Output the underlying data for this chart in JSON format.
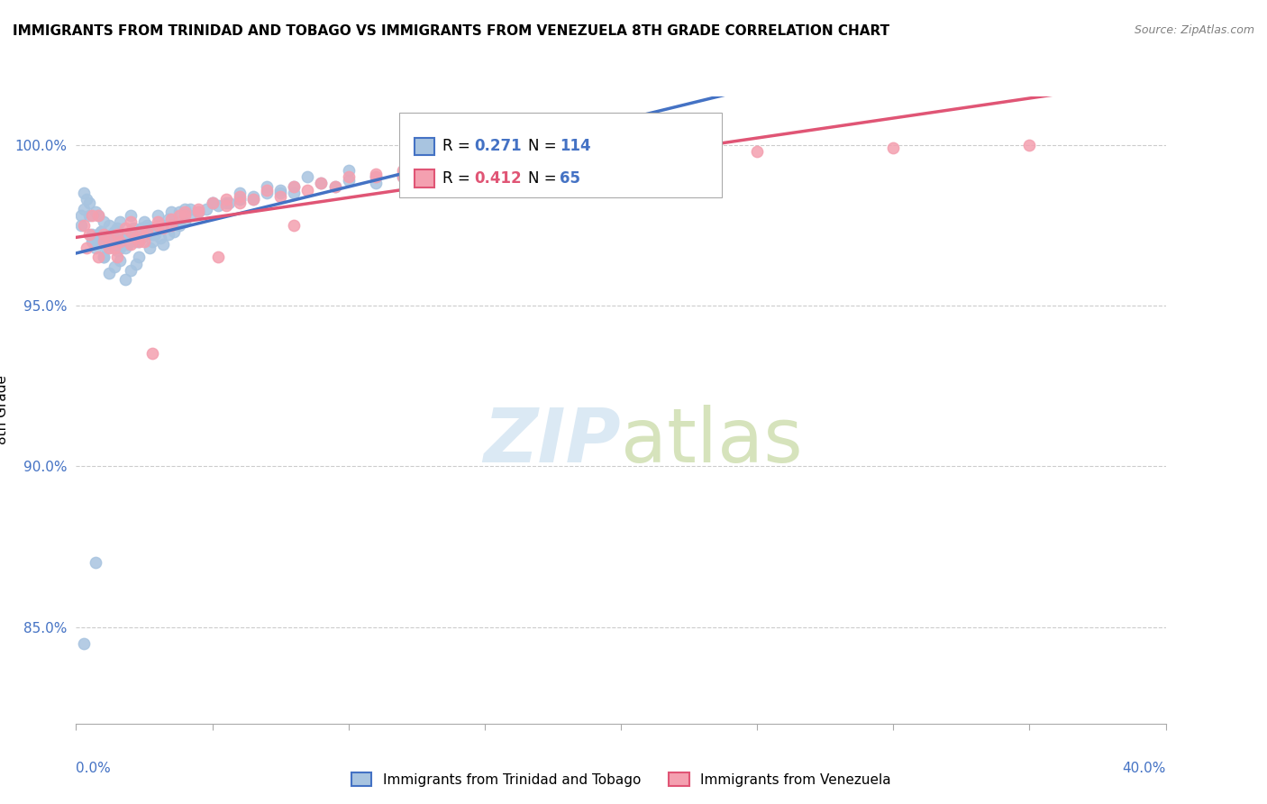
{
  "title": "IMMIGRANTS FROM TRINIDAD AND TOBAGO VS IMMIGRANTS FROM VENEZUELA 8TH GRADE CORRELATION CHART",
  "source": "Source: ZipAtlas.com",
  "ylabel": "8th Grade",
  "xlim": [
    0.0,
    40.0
  ],
  "ylim": [
    82.0,
    101.5
  ],
  "yticks": [
    85.0,
    90.0,
    95.0,
    100.0
  ],
  "ytick_labels": [
    "85.0%",
    "90.0%",
    "95.0%",
    "100.0%"
  ],
  "series1_name": "Immigrants from Trinidad and Tobago",
  "series2_name": "Immigrants from Venezuela",
  "series1_color": "#a8c4e0",
  "series2_color": "#f4a0b0",
  "series1_line_color": "#4472c4",
  "series2_line_color": "#e05575",
  "R1": 0.271,
  "N1": 114,
  "R2": 0.412,
  "N2": 65,
  "series1_x": [
    0.2,
    0.3,
    0.5,
    0.6,
    0.7,
    0.8,
    0.9,
    1.0,
    1.1,
    1.2,
    1.3,
    1.4,
    1.5,
    1.6,
    1.7,
    1.8,
    1.9,
    2.0,
    2.1,
    2.2,
    2.3,
    2.4,
    2.5,
    2.6,
    2.7,
    2.8,
    2.9,
    3.0,
    3.1,
    3.2,
    3.4,
    3.6,
    3.8,
    4.0,
    4.2,
    4.5,
    4.8,
    5.2,
    5.6,
    6.0,
    6.5,
    7.0,
    7.5,
    8.0,
    9.0,
    10.0,
    11.0,
    12.0,
    14.0,
    16.0,
    18.0,
    20.0,
    1.0,
    1.2,
    1.4,
    1.6,
    1.8,
    2.0,
    2.2,
    0.8,
    1.0,
    0.5,
    0.7,
    1.5,
    2.0,
    0.3,
    0.6,
    1.1,
    1.3,
    0.9,
    2.5,
    3.0,
    4.0,
    5.0,
    6.0,
    3.5,
    2.8,
    1.7,
    0.4,
    1.9,
    2.3,
    3.2,
    0.2,
    0.8,
    1.6,
    2.4,
    3.8,
    5.5,
    7.5,
    9.5,
    12.0,
    15.0,
    0.6,
    1.4,
    2.1,
    3.6,
    4.5,
    6.5,
    8.0,
    11.0,
    1.0,
    1.8,
    2.6,
    3.4,
    4.2,
    5.0,
    6.0,
    7.0,
    8.5,
    10.0,
    13.0,
    17.0,
    0.3,
    0.7
  ],
  "series1_y": [
    97.5,
    98.0,
    97.8,
    97.2,
    96.8,
    97.0,
    97.3,
    97.1,
    96.9,
    97.5,
    97.2,
    97.0,
    97.4,
    97.6,
    97.1,
    96.8,
    97.0,
    97.2,
    97.4,
    97.0,
    96.5,
    97.1,
    97.3,
    97.5,
    96.8,
    97.0,
    97.2,
    97.4,
    97.1,
    96.9,
    97.2,
    97.3,
    97.5,
    97.6,
    97.8,
    97.9,
    98.0,
    98.1,
    98.2,
    98.3,
    98.4,
    98.5,
    98.6,
    98.7,
    98.8,
    98.9,
    99.0,
    99.1,
    99.2,
    99.3,
    99.5,
    99.6,
    96.5,
    96.0,
    96.2,
    96.4,
    95.8,
    96.1,
    96.3,
    97.8,
    97.6,
    98.2,
    97.9,
    96.7,
    97.8,
    98.5,
    97.1,
    96.8,
    97.0,
    97.3,
    97.6,
    97.8,
    98.0,
    98.2,
    98.3,
    97.9,
    97.2,
    97.1,
    98.3,
    96.9,
    97.0,
    97.5,
    97.8,
    97.2,
    96.8,
    97.4,
    97.9,
    98.2,
    98.5,
    98.7,
    99.0,
    99.2,
    97.0,
    97.3,
    97.1,
    97.6,
    97.9,
    98.3,
    98.5,
    98.8,
    96.5,
    97.0,
    97.4,
    97.7,
    98.0,
    98.2,
    98.5,
    98.7,
    99.0,
    99.2,
    99.4,
    99.5,
    84.5,
    87.0
  ],
  "series2_x": [
    0.3,
    0.5,
    0.8,
    1.0,
    1.2,
    1.5,
    1.8,
    2.0,
    2.3,
    2.6,
    3.0,
    3.5,
    4.0,
    4.5,
    5.0,
    5.5,
    6.0,
    7.0,
    8.0,
    9.0,
    10.0,
    11.0,
    12.0,
    14.0,
    16.0,
    18.0,
    20.0,
    25.0,
    30.0,
    35.0,
    1.5,
    2.5,
    3.5,
    1.0,
    2.0,
    4.0,
    6.0,
    0.6,
    1.4,
    2.2,
    3.2,
    0.8,
    1.6,
    2.4,
    3.8,
    5.5,
    7.5,
    9.5,
    12.5,
    15.5,
    0.4,
    1.2,
    2.0,
    3.0,
    4.5,
    6.5,
    8.5,
    11.0,
    13.0,
    17.0,
    2.8,
    5.2,
    8.0,
    12.0,
    20.0
  ],
  "series2_y": [
    97.5,
    97.2,
    97.8,
    97.0,
    96.8,
    97.2,
    97.4,
    97.6,
    97.0,
    97.3,
    97.5,
    97.7,
    97.9,
    98.0,
    98.2,
    98.3,
    98.4,
    98.6,
    98.7,
    98.8,
    99.0,
    99.1,
    99.2,
    99.3,
    99.5,
    99.6,
    99.7,
    99.8,
    99.9,
    100.0,
    96.5,
    97.0,
    97.5,
    97.2,
    96.9,
    97.8,
    98.2,
    97.8,
    96.8,
    97.1,
    97.4,
    96.5,
    97.0,
    97.3,
    97.8,
    98.1,
    98.4,
    98.7,
    99.0,
    99.3,
    96.8,
    97.1,
    97.3,
    97.6,
    97.9,
    98.3,
    98.6,
    99.0,
    99.2,
    99.5,
    93.5,
    96.5,
    97.5,
    99.0,
    99.8
  ]
}
